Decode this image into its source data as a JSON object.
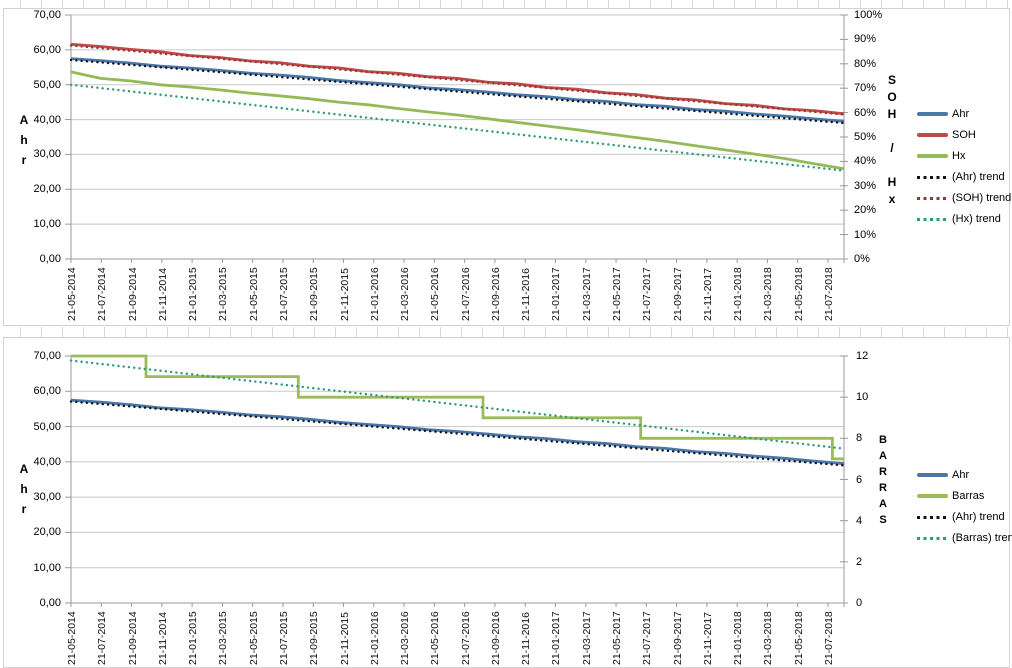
{
  "app": {
    "kind": "spreadsheet embedded line charts",
    "background_color": "#ffffff"
  },
  "chart_data": [
    {
      "type": "line",
      "title": "",
      "grid": "horizontal",
      "legend_position": "right",
      "x_tick_labels": [
        "21-05-2014",
        "21-07-2014",
        "21-09-2014",
        "21-11-2014",
        "21-01-2015",
        "21-03-2015",
        "21-05-2015",
        "21-07-2015",
        "21-09-2015",
        "21-11-2015",
        "21-01-2016",
        "21-03-2016",
        "21-05-2016",
        "21-07-2016",
        "21-09-2016",
        "21-11-2016",
        "21-01-2017",
        "21-03-2017",
        "21-05-2017",
        "21-07-2017",
        "21-09-2017",
        "21-11-2017",
        "21-01-2018",
        "21-03-2018",
        "21-05-2018",
        "21-07-2018"
      ],
      "x_note": "data points sampled at bimonthly ticks; lines extend about one month past last tick to plot edge",
      "left_axis": {
        "label": "Ahr",
        "min": 0,
        "max": 70,
        "tick_labels": [
          "70,00",
          "60,00",
          "50,00",
          "40,00",
          "30,00",
          "20,00",
          "10,00",
          "0,00"
        ]
      },
      "right_axis": {
        "label": "SOH / Hx",
        "min": 0,
        "max": 100,
        "unit": "%",
        "tick_labels": [
          "100%",
          "90%",
          "80%",
          "70%",
          "60%",
          "50%",
          "40%",
          "30%",
          "20%",
          "10%",
          "0%"
        ]
      },
      "series": [
        {
          "name": "Ahr",
          "axis": "left",
          "style": "solid",
          "color": "#4a76a8",
          "values": [
            57.5,
            56.9,
            56.2,
            55.3,
            54.8,
            54.1,
            53.3,
            52.8,
            52.1,
            51.2,
            50.6,
            50.0,
            49.1,
            48.6,
            47.9,
            47.1,
            46.6,
            45.7,
            45.2,
            44.3,
            43.8,
            42.9,
            42.4,
            41.6,
            41.0,
            40.2,
            39.5
          ]
        },
        {
          "name": "SOH",
          "axis": "right",
          "style": "solid",
          "color": "#bf4a47",
          "values": [
            88.0,
            87.1,
            85.9,
            84.9,
            83.4,
            82.6,
            81.2,
            80.5,
            79.0,
            78.3,
            76.8,
            76.1,
            74.7,
            74.0,
            72.5,
            71.8,
            70.3,
            69.6,
            68.1,
            67.4,
            65.9,
            65.2,
            63.7,
            63.0,
            61.5,
            60.8,
            59.5
          ]
        },
        {
          "name": "Hx",
          "axis": "right",
          "style": "solid",
          "color": "#94b957",
          "values": [
            76.7,
            74.0,
            73.0,
            71.4,
            70.5,
            69.3,
            68.0,
            66.9,
            65.7,
            64.3,
            63.2,
            61.7,
            60.3,
            59.0,
            57.5,
            56.0,
            54.5,
            53.0,
            51.4,
            49.8,
            48.2,
            46.4,
            44.7,
            43.0,
            41.2,
            39.0,
            37.0
          ]
        },
        {
          "name": "(Ahr) trend",
          "axis": "left",
          "style": "dotted",
          "color": "#10151c",
          "linear": [
            57.1,
            39.0
          ]
        },
        {
          "name": "(SOH) trend",
          "axis": "right",
          "style": "dotted",
          "color": "#8f3a37",
          "linear": [
            87.5,
            59.2
          ]
        },
        {
          "name": "(Hx) trend",
          "axis": "right",
          "style": "dotted",
          "color": "#2e9b70",
          "linear": [
            71.4,
            36.2
          ]
        }
      ]
    },
    {
      "type": "line",
      "title": "",
      "grid": "horizontal",
      "legend_position": "right",
      "x_tick_labels": [
        "21-05-2014",
        "21-07-2014",
        "21-09-2014",
        "21-11-2014",
        "21-01-2015",
        "21-03-2015",
        "21-05-2015",
        "21-07-2015",
        "21-09-2015",
        "21-11-2015",
        "21-01-2016",
        "21-03-2016",
        "21-05-2016",
        "21-07-2016",
        "21-09-2016",
        "21-11-2016",
        "21-01-2017",
        "21-03-2017",
        "21-05-2017",
        "21-07-2017",
        "21-09-2017",
        "21-11-2017",
        "21-01-2018",
        "21-03-2018",
        "21-05-2018",
        "21-07-2018"
      ],
      "x_note": "data points sampled at bimonthly ticks; lines extend about one month past last tick to plot edge",
      "left_axis": {
        "label": "Ahr",
        "min": 0,
        "max": 70,
        "tick_labels": [
          "70,00",
          "60,00",
          "50,00",
          "40,00",
          "30,00",
          "20,00",
          "10,00",
          "0,00"
        ]
      },
      "right_axis": {
        "label": "BARRAS",
        "min": 0,
        "max": 12,
        "tick_labels": [
          "12",
          "10",
          "8",
          "6",
          "4",
          "2",
          "0"
        ]
      },
      "series": [
        {
          "name": "Ahr",
          "axis": "left",
          "style": "solid",
          "color": "#4a76a8",
          "values": [
            57.5,
            56.9,
            56.2,
            55.3,
            54.8,
            54.1,
            53.3,
            52.8,
            52.1,
            51.2,
            50.6,
            50.0,
            49.1,
            48.6,
            47.9,
            47.1,
            46.6,
            45.7,
            45.2,
            44.3,
            43.8,
            42.9,
            42.4,
            41.6,
            41.0,
            40.2,
            39.5
          ]
        },
        {
          "name": "Barras",
          "axis": "right",
          "style": "step",
          "color": "#9bbb59",
          "steps": [
            {
              "value": 12,
              "until": "approx 21-10-2014",
              "until_frac": 0.097
            },
            {
              "value": 11,
              "until": "approx 21-08-2015",
              "until_frac": 0.294
            },
            {
              "value": 10,
              "until": "approx 21-08-2016",
              "until_frac": 0.533
            },
            {
              "value": 9,
              "until": "approx 21-07-2017",
              "until_frac": 0.737
            },
            {
              "value": 8,
              "until": "approx 21-08-2018",
              "until_frac": 0.985
            },
            {
              "value": 7,
              "until": "plot edge",
              "until_frac": 1.0
            }
          ]
        },
        {
          "name": "(Ahr) trend",
          "axis": "left",
          "style": "dotted",
          "color": "#10151c",
          "linear": [
            57.1,
            39.0
          ]
        },
        {
          "name": "(Barras) trend",
          "axis": "right",
          "style": "dotted",
          "color": "#2e9b70",
          "linear": [
            11.78,
            7.5
          ]
        }
      ]
    }
  ]
}
